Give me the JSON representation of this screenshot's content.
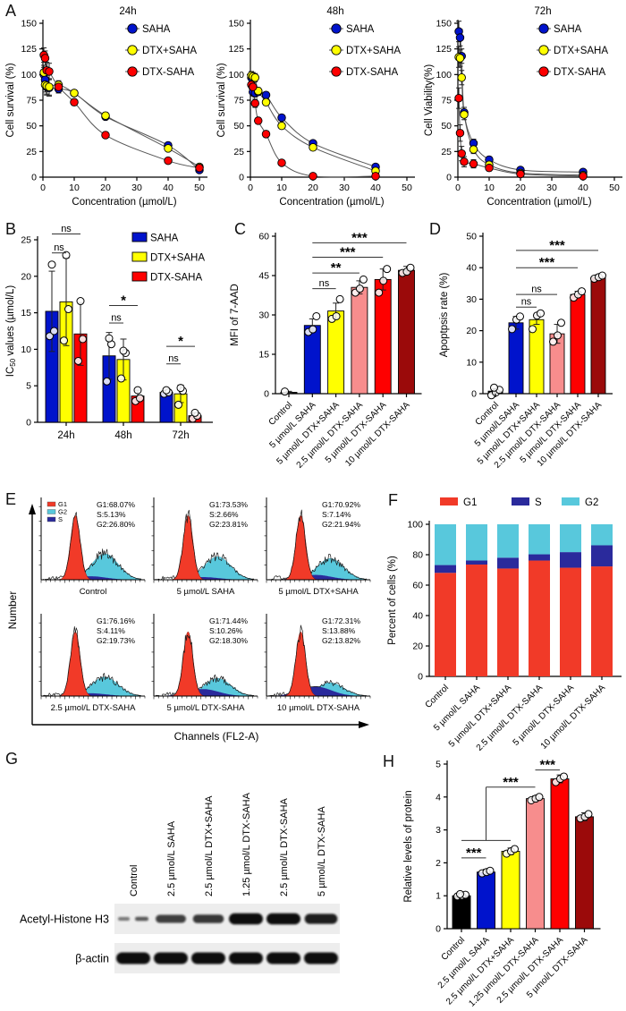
{
  "colors": {
    "saha_blue": "#0013CC",
    "dtx_plus_saha_yellow": "#FFFF00",
    "dtx_saha_red": "#FE0000",
    "pink": "#F78D8D",
    "dark_red": "#9B0A0A",
    "control_black": "#000000",
    "g1_red": "#F13A28",
    "g2_cyan": "#58C8DC",
    "s_navy": "#2A2A9C"
  },
  "chart_data": [
    {
      "panel_letter": "A",
      "type": "line",
      "title": "24h",
      "xlabel": "Concentration (µmol/L)",
      "ylabel": "Cell survival (%)",
      "xlim": [
        0,
        52
      ],
      "xticks": [
        0,
        10,
        20,
        30,
        40,
        50
      ],
      "ylim": [
        0,
        150
      ],
      "yticks": [
        0,
        25,
        50,
        75,
        100,
        125,
        150
      ],
      "x": [
        0.3,
        0.7,
        1.2,
        2,
        5,
        10,
        20,
        40,
        50
      ],
      "err": [
        7,
        7,
        8,
        8,
        4,
        3,
        3,
        2,
        2
      ],
      "series": [
        {
          "name": "SAHA",
          "color": "#0013CC",
          "values": [
            100,
            95,
            88,
            87,
            86,
            82,
            59,
            31,
            7
          ]
        },
        {
          "name": "DTX+SAHA",
          "color": "#FFFF00",
          "values": [
            102,
            90,
            89,
            88,
            90,
            82,
            60,
            28,
            10
          ]
        },
        {
          "name": "DTX-SAHA",
          "color": "#FE0000",
          "values": [
            119,
            116,
            104,
            103,
            88,
            73,
            41,
            16,
            9
          ]
        }
      ]
    },
    {
      "panel_letter": "",
      "type": "line",
      "title": "48h",
      "xlabel": "Concentration (µmol/L)",
      "ylabel": "Cell survival (%)",
      "xlim": [
        0,
        52
      ],
      "xticks": [
        0,
        10,
        20,
        30,
        40,
        50
      ],
      "ylim": [
        0,
        150
      ],
      "yticks": [
        0,
        25,
        50,
        75,
        100,
        125,
        150
      ],
      "x": [
        0.3,
        0.8,
        1.5,
        2.5,
        5,
        10,
        20,
        40
      ],
      "err": [
        4,
        4,
        4,
        3,
        3,
        2,
        2,
        2
      ],
      "series": [
        {
          "name": "SAHA",
          "color": "#0013CC",
          "values": [
            97,
            83,
            82,
            83,
            80,
            58,
            33,
            10
          ]
        },
        {
          "name": "DTX+SAHA",
          "color": "#FFFF00",
          "values": [
            99,
            98,
            97,
            84,
            73,
            50,
            29,
            6
          ]
        },
        {
          "name": "DTX-SAHA",
          "color": "#FE0000",
          "values": [
            90,
            88,
            72,
            55,
            42,
            14,
            1,
            1
          ]
        }
      ]
    },
    {
      "panel_letter": "",
      "type": "line",
      "title": "72h",
      "xlabel": "Concentration (µmol/L)",
      "ylabel": "Cell Viability(%)",
      "xlim": [
        0,
        52
      ],
      "xticks": [
        0,
        10,
        20,
        30,
        40,
        50
      ],
      "ylim": [
        0,
        150
      ],
      "yticks": [
        0,
        25,
        50,
        75,
        100,
        125,
        150
      ],
      "x": [
        0.3,
        0.7,
        1.2,
        2,
        5,
        10,
        20,
        40
      ],
      "err": [
        10,
        8,
        7,
        5,
        4,
        3,
        2,
        2
      ],
      "series": [
        {
          "name": "SAHA",
          "color": "#0013CC",
          "values": [
            142,
            136,
            118,
            63,
            33,
            17,
            7,
            5
          ]
        },
        {
          "name": "DTX+SAHA",
          "color": "#FFFF00",
          "values": [
            117,
            116,
            97,
            61,
            27,
            12,
            4,
            2
          ]
        },
        {
          "name": "DTX-SAHA",
          "color": "#FE0000",
          "values": [
            77,
            43,
            23,
            15,
            13,
            9,
            3,
            1
          ]
        }
      ]
    },
    {
      "panel_letter": "B",
      "type": "grouped-bar",
      "ylabel_parts": [
        "IC",
        "50",
        " values (µmol/L)"
      ],
      "ylim": [
        0,
        25
      ],
      "yticks": [
        0,
        5,
        10,
        15,
        20,
        25
      ],
      "groups": [
        "24h",
        "48h",
        "72h"
      ],
      "series": [
        {
          "name": "SAHA",
          "color": "#0013CC",
          "values": [
            15.2,
            9.1,
            4.1
          ],
          "errors": [
            5.5,
            3.2,
            0.3
          ],
          "dots": [
            [
              11.8,
              12.5,
              21.6
            ],
            [
              5.6,
              10.7,
              11.5
            ],
            [
              3.9,
              4.1,
              4.4
            ]
          ]
        },
        {
          "name": "DTX+SAHA",
          "color": "#FFFF00",
          "values": [
            16.5,
            8.6,
            3.9
          ],
          "errors": [
            6.0,
            2.8,
            1.2
          ],
          "dots": [
            [
              11.2,
              15.5,
              22.9
            ],
            [
              6.0,
              9.5,
              9.8
            ],
            [
              2.4,
              4.3,
              4.7
            ]
          ]
        },
        {
          "name": "DTX-SAHA",
          "color": "#FE0000",
          "values": [
            12.1,
            3.6,
            0.9
          ],
          "errors": [
            4.3,
            0.8,
            0.4
          ],
          "dots": [
            [
              8.4,
              11.4,
              16.6
            ],
            [
              2.9,
              3.3,
              4.4
            ],
            [
              0.5,
              0.9,
              1.3
            ]
          ]
        }
      ],
      "sig": [
        {
          "group": 0,
          "a": 0,
          "b": 1,
          "y": 23.2,
          "label": "ns"
        },
        {
          "group": 0,
          "a": 0,
          "b": 2,
          "y": 25.8,
          "label": "ns"
        },
        {
          "group": 1,
          "a": 0,
          "b": 1,
          "y": 13.6,
          "label": "ns"
        },
        {
          "group": 1,
          "a": 0,
          "b": 2,
          "y": 16.0,
          "label": "*"
        },
        {
          "group": 2,
          "a": 0,
          "b": 1,
          "y": 8.0,
          "label": "ns"
        },
        {
          "group": 2,
          "a": 0,
          "b": 2,
          "y": 10.4,
          "label": "*"
        }
      ]
    },
    {
      "panel_letter": "C",
      "type": "bar",
      "ylabel": "MFI of 7-AAD",
      "ylim": [
        0,
        60
      ],
      "yticks": [
        0,
        15,
        30,
        45,
        60
      ],
      "categories": [
        "Control",
        "5 µmol/L SAHA",
        "5 µmol/L DTX+SAHA",
        "2.5 µmol/L DTX-SAHA",
        "5 µmol/L DTX-SAHA",
        "10 µmol/L DTX-SAHA"
      ],
      "values": [
        0.5,
        26,
        31.5,
        40.5,
        43.5,
        47
      ],
      "colors": [
        "#000000",
        "#0013CC",
        "#FFFF00",
        "#F78D8D",
        "#FE0000",
        "#9B0A0A"
      ],
      "errors": [
        0.4,
        2.5,
        3,
        2.5,
        4,
        1.5
      ],
      "dots": [
        [
          0.8
        ],
        [
          23.5,
          24.5,
          29.5
        ],
        [
          28.5,
          29.5,
          36
        ],
        [
          38.5,
          40,
          43.5
        ],
        [
          38.5,
          43,
          47.5
        ],
        [
          46,
          46.5,
          48
        ]
      ],
      "sig": [
        {
          "a": 1,
          "b": 2,
          "y": 40,
          "label": "ns"
        },
        {
          "a": 1,
          "b": 3,
          "y": 46,
          "label": "**"
        },
        {
          "a": 1,
          "b": 4,
          "y": 52,
          "label": "***"
        },
        {
          "a": 1,
          "b": 5,
          "y": 57.5,
          "label": "***"
        }
      ]
    },
    {
      "panel_letter": "D",
      "type": "bar",
      "ylabel": "Apoptpsis rate (%)",
      "ylim": [
        0,
        50
      ],
      "yticks": [
        0,
        10,
        20,
        30,
        40,
        50
      ],
      "categories": [
        "Control",
        "5 µmol/LSAHA",
        "5 µmol/L DTX+SAHA",
        "2.5 µmol/L DTX-SAHA",
        "5 µmol/L DTX-SAHA",
        "10 µmol/L DTX-SAHA"
      ],
      "values": [
        0.8,
        22.5,
        23.5,
        19,
        31.5,
        37
      ],
      "colors": [
        "#000000",
        "#0013CC",
        "#FFFF00",
        "#F78D8D",
        "#FE0000",
        "#9B0A0A"
      ],
      "errors": [
        0.8,
        2,
        1.5,
        3,
        1,
        0.8
      ],
      "dots": [
        [
          -0.5,
          0.4,
          1.2,
          1.9
        ],
        [
          20.5,
          23.5,
          24.5
        ],
        [
          20.5,
          24.8,
          25.5
        ],
        [
          16.5,
          18.5,
          22.5
        ],
        [
          30.5,
          31.5,
          32.5
        ],
        [
          36.5,
          37,
          37.5
        ]
      ],
      "sig": [
        {
          "a": 1,
          "b": 2,
          "y": 27.5,
          "label": "ns"
        },
        {
          "a": 1,
          "b": 3,
          "y": 31.5,
          "label": "ns"
        },
        {
          "a": 1,
          "b": 4,
          "y": 40,
          "label": "***"
        },
        {
          "a": 1,
          "b": 5,
          "y": 45.5,
          "label": "***"
        }
      ]
    },
    {
      "panel_letter": "E",
      "type": "flow",
      "ylabel": "Number",
      "xlabel": "Channels (FL2-A)",
      "legend": [
        {
          "label": "G1",
          "color": "#F13A28"
        },
        {
          "label": "G2",
          "color": "#58C8DC"
        },
        {
          "label": "S",
          "color": "#2A2A9C"
        }
      ],
      "subpanels": [
        {
          "label": "Control",
          "stats": [
            "G1:68.07%",
            "S:5.13%",
            "G2:26.80%"
          ],
          "g1": 68.07,
          "s": 5.13,
          "g2": 26.8
        },
        {
          "label": "5 µmol/L SAHA",
          "stats": [
            "G1:73.53%",
            "S:2.66%",
            "G2:23.81%"
          ],
          "g1": 73.53,
          "s": 2.66,
          "g2": 23.81
        },
        {
          "label": "5 µmol/L DTX+SAHA",
          "stats": [
            "G1:70.92%",
            "S:7.14%",
            "G2:21.94%"
          ],
          "g1": 70.92,
          "s": 7.14,
          "g2": 21.94
        },
        {
          "label": "2.5 µmol/L DTX-SAHA",
          "stats": [
            "G1:76.16%",
            "S:4.11%",
            "G2:19.73%"
          ],
          "g1": 76.16,
          "s": 4.11,
          "g2": 19.73
        },
        {
          "label": "5 µmol/L DTX-SAHA",
          "stats": [
            "G1:71.44%",
            "S:10.26%",
            "G2:18.30%"
          ],
          "g1": 71.44,
          "s": 10.26,
          "g2": 18.3
        },
        {
          "label": "10 µmol/L DTX-SAHA",
          "stats": [
            "G1:72.31%",
            "S:13.88%",
            "G2:13.82%"
          ],
          "g1": 72.31,
          "s": 13.88,
          "g2": 13.82
        }
      ]
    },
    {
      "panel_letter": "F",
      "type": "stacked-bar",
      "ylabel": "Percent of cells (%)",
      "ylim": [
        0,
        100
      ],
      "yticks": [
        0,
        20,
        40,
        60,
        80,
        100
      ],
      "categories": [
        "Control",
        "5 µmol/L SAHA",
        "5 µmol/L DTX+SAHA",
        "2.5 µmol/L DTX-SAHA",
        "5 µmol/L DTX-SAHA",
        "10 µmol/L DTX-SAHA"
      ],
      "legend": [
        "G1",
        "S",
        "G2"
      ],
      "series": [
        {
          "name": "G1",
          "color": "#F13A28",
          "values": [
            68.07,
            73.53,
            70.92,
            76.16,
            71.44,
            72.31
          ]
        },
        {
          "name": "S",
          "color": "#2A2A9C",
          "values": [
            5.13,
            2.66,
            7.14,
            4.11,
            10.26,
            13.88
          ]
        },
        {
          "name": "G2",
          "color": "#58C8DC",
          "values": [
            26.8,
            23.81,
            21.94,
            19.73,
            18.3,
            13.82
          ]
        }
      ]
    },
    {
      "panel_letter": "G",
      "type": "western-blot",
      "lanes": [
        "Control",
        "2.5 µmol/L SAHA",
        "2.5 µmol/L DTX+SAHA",
        "1.25 µmol/L DTX-SAHA",
        "2.5 µmol/L DTX-SAHA",
        "5 µmol/L DTX-SAHA"
      ],
      "rows": [
        {
          "label": "Acetyl-Histone H3",
          "levels": [
            0.35,
            0.55,
            0.62,
            1.0,
            1.0,
            0.85
          ]
        },
        {
          "label": "β-actin",
          "levels": [
            1,
            1,
            1,
            1,
            1,
            1
          ]
        }
      ]
    },
    {
      "panel_letter": "H",
      "type": "bar",
      "ylabel": "Relative levels of protein",
      "ylim": [
        0,
        5
      ],
      "yticks": [
        0,
        1,
        2,
        3,
        4,
        5
      ],
      "categories": [
        "Control",
        "2.5 µmol/L SAHA",
        "2.5 µmol/L DTX+SAHA",
        "1.25 µmol/L DTX-SAHA",
        "2.5 µmol/L DTX-SAHA",
        "5 µmol/L DTX-SAHA"
      ],
      "values": [
        1.0,
        1.72,
        2.35,
        3.95,
        4.55,
        3.4
      ],
      "colors": [
        "#000000",
        "#0013CC",
        "#FFFF00",
        "#F78D8D",
        "#FE0000",
        "#9B0A0A"
      ],
      "errors": [
        0.05,
        0.08,
        0.1,
        0.08,
        0.12,
        0.12
      ],
      "dots": [
        [
          0.98,
          1.0,
          1.03,
          1.05
        ],
        [
          1.68,
          1.72,
          1.76
        ],
        [
          2.28,
          2.35,
          2.42
        ],
        [
          3.9,
          3.95,
          4.0
        ],
        [
          4.45,
          4.55,
          4.62
        ],
        [
          3.35,
          3.4,
          3.48
        ]
      ],
      "sig": [
        {
          "a": 0,
          "b": 1,
          "y": 2.15,
          "label": "***"
        },
        {
          "kind": "step",
          "lowA": 0,
          "lowB": 2,
          "lowY": 2.68,
          "riser": 1,
          "highY": 4.3,
          "highB": 3,
          "label": "***"
        },
        {
          "a": 3,
          "b": 4,
          "y": 4.82,
          "label": "***"
        }
      ]
    }
  ]
}
